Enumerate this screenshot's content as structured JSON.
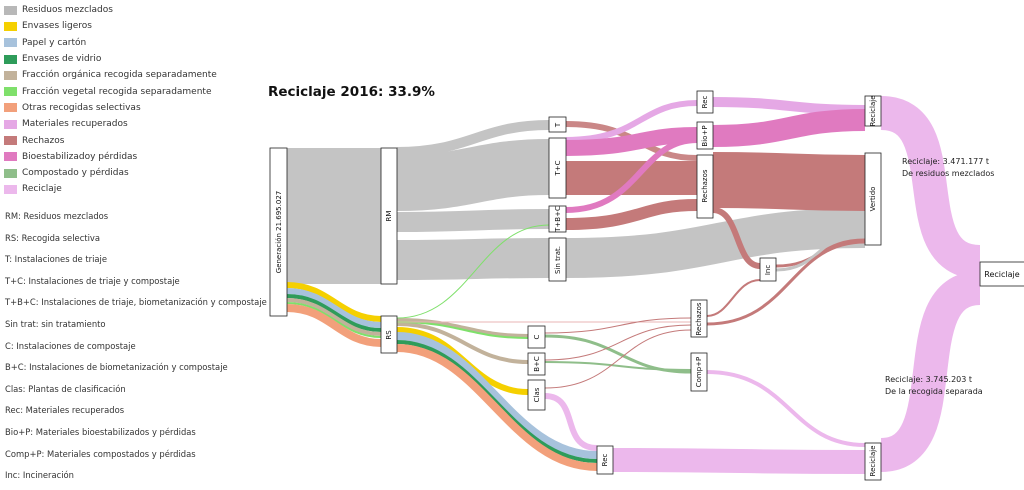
{
  "title": "Reciclaje 2016: 33.9%",
  "legend": [
    {
      "label": "Residuos mezclados",
      "color": "#b8b8b8"
    },
    {
      "label": "Envases ligeros",
      "color": "#f5d000"
    },
    {
      "label": "Papel y cartón",
      "color": "#a7c2dc"
    },
    {
      "label": "Envases de vidrio",
      "color": "#2e9c5a"
    },
    {
      "label": "Fracción orgánica recogida separadamente",
      "color": "#c2b29b"
    },
    {
      "label": "Fracción vegetal recogida separadamente",
      "color": "#7fe06b"
    },
    {
      "label": "Otras recogidas selectivas",
      "color": "#f2a07b"
    },
    {
      "label": "Materiales recuperados",
      "color": "#e5a8e5"
    },
    {
      "label": "Rechazos",
      "color": "#c47a7a"
    },
    {
      "label": "Bioestabilizadoy pérdidas",
      "color": "#e07ac0"
    },
    {
      "label": "Compostado y pérdidas",
      "color": "#8fbe8a"
    },
    {
      "label": "Reciclaje",
      "color": "#ecb8ec"
    }
  ],
  "abbreviations": [
    "RM: Residuos mezclados",
    "RS: Recogida selectiva",
    "T: Instalaciones de triaje",
    "T+C: Instalaciones de triaje y compostaje",
    "T+B+C: Instalaciones de triaje, biometanización y compostaje",
    "Sin trat: sin tratamiento",
    "C: Instalaciones de compostaje",
    "B+C: Instalaciones de biometanización y compostaje",
    "Clas: Plantas de clasificación",
    "Rec: Materiales recuperados",
    "Bio+P: Materiales bioestabilizados y pérdidas",
    "Comp+P: Materiales compostados y pérdidas",
    "Inc: Incineración"
  ],
  "nodes": {
    "generacion": "Generación 21.695.027",
    "rm": "RM",
    "rs": "RS",
    "t": "T",
    "tc": "T+C",
    "tbc": "T+B+C",
    "sintrat": "Sin trat.",
    "c": "C",
    "bc": "B+C",
    "clas": "Clas",
    "rec_top": "Rec",
    "biop": "Bio+P",
    "rechazos_top": "Rechazos",
    "inc": "Inc",
    "rechazos_bottom": "Rechazos",
    "compp": "Comp+P",
    "rec_bottom": "Rec",
    "reciclaje_top": "Reciclaje",
    "vertido": "Vertido",
    "reciclaje_bottom": "Reciclaje",
    "reciclaje_final": "Reciclaje"
  },
  "annotations": {
    "mixed_line1": "Reciclaje: 3.471.177 t",
    "mixed_line2": "De residuos mezclados",
    "separate_line1": "Reciclaje: 3.745.203 t",
    "separate_line2": "De la recogida separada"
  }
}
